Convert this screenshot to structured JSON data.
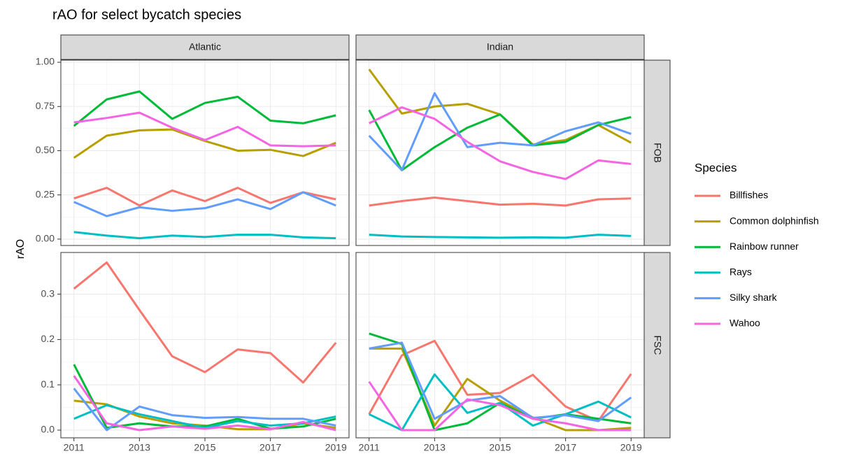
{
  "chart_data": {
    "type": "line",
    "title": "rAO for select bycatch species",
    "ylabel": "rAO",
    "legend": {
      "title": "Species"
    },
    "series": [
      {
        "name": "Billfishes",
        "color": "#F8766D"
      },
      {
        "name": "Common dolphinfish",
        "color": "#B79F00"
      },
      {
        "name": "Rainbow runner",
        "color": "#00BA38"
      },
      {
        "name": "Rays",
        "color": "#00BFC4"
      },
      {
        "name": "Silky shark",
        "color": "#619CFF"
      },
      {
        "name": "Wahoo",
        "color": "#F564E3"
      }
    ],
    "x": [
      2011,
      2012,
      2013,
      2014,
      2015,
      2016,
      2017,
      2018,
      2019
    ],
    "xlim": [
      2010.6,
      2019.4
    ],
    "xticks": [
      2011,
      2013,
      2015,
      2017,
      2019
    ],
    "columns": [
      "Atlantic",
      "Indian"
    ],
    "rows": [
      {
        "label": "FOB",
        "ylim": [
          -0.036,
          1.012
        ],
        "yticks": [
          {
            "value": 0,
            "label": "0.00"
          },
          {
            "value": 0.25,
            "label": "0.25"
          },
          {
            "value": 0.5,
            "label": "0.50"
          },
          {
            "value": 0.75,
            "label": "0.75"
          },
          {
            "value": 1,
            "label": "1.00"
          }
        ],
        "panels": [
          [
            [
              0.23,
              0.29,
              0.19,
              0.275,
              0.215,
              0.29,
              0.205,
              0.265,
              0.225
            ],
            [
              0.46,
              0.585,
              0.615,
              0.62,
              0.555,
              0.5,
              0.505,
              0.47,
              0.545
            ],
            [
              0.64,
              0.79,
              0.835,
              0.68,
              0.77,
              0.805,
              0.67,
              0.655,
              0.7
            ],
            [
              0.04,
              0.02,
              0.005,
              0.02,
              0.012,
              0.025,
              0.025,
              0.01,
              0.005
            ],
            [
              0.21,
              0.13,
              0.18,
              0.16,
              0.175,
              0.225,
              0.17,
              0.265,
              0.19
            ],
            [
              0.66,
              0.685,
              0.715,
              0.63,
              0.56,
              0.635,
              0.53,
              0.525,
              0.53
            ]
          ],
          [
            [
              0.19,
              0.215,
              0.235,
              0.215,
              0.195,
              0.2,
              0.19,
              0.225,
              0.23
            ],
            [
              0.96,
              0.71,
              0.75,
              0.765,
              0.705,
              0.535,
              0.56,
              0.645,
              0.545
            ],
            [
              0.73,
              0.39,
              0.52,
              0.63,
              0.705,
              0.53,
              0.55,
              0.645,
              0.69
            ],
            [
              0.025,
              0.015,
              0.012,
              0.01,
              0.008,
              0.01,
              0.008,
              0.025,
              0.018
            ],
            [
              0.585,
              0.39,
              0.825,
              0.52,
              0.545,
              0.53,
              0.61,
              0.66,
              0.595
            ],
            [
              0.655,
              0.745,
              0.68,
              0.55,
              0.44,
              0.38,
              0.34,
              0.445,
              0.425
            ]
          ]
        ]
      },
      {
        "label": "FSC",
        "ylim": [
          -0.017,
          0.392
        ],
        "yticks": [
          {
            "value": 0,
            "label": "0.0"
          },
          0.1,
          0.2,
          0.3
        ],
        "panels": [
          [
            [
              0.312,
              0.37,
              0.265,
              0.163,
              0.128,
              0.178,
              0.17,
              0.105,
              0.193
            ],
            [
              0.065,
              0.057,
              0.03,
              0.015,
              0.01,
              0.002,
              0.002,
              0.015,
              0.005
            ],
            [
              0.145,
              0.005,
              0.015,
              0.008,
              0.008,
              0.025,
              0.003,
              0.008,
              0.025
            ],
            [
              0.025,
              0.055,
              0.035,
              0.02,
              0.005,
              0.02,
              0.01,
              0.015,
              0.03
            ],
            [
              0.092,
              0,
              0.052,
              0.033,
              0.027,
              0.029,
              0.025,
              0.025,
              0.01
            ],
            [
              0.12,
              0.015,
              0,
              0.008,
              0.003,
              0.01,
              0.002,
              0.018,
              0
            ]
          ],
          [
            [
              0.035,
              0.165,
              0.197,
              0.078,
              0.082,
              0.122,
              0.052,
              0.02,
              0.124
            ],
            [
              0.18,
              0.18,
              0.01,
              0.113,
              0.065,
              0.028,
              0,
              0,
              0.005
            ],
            [
              0.213,
              0.19,
              0,
              0.015,
              0.06,
              0.025,
              0.035,
              0.025,
              0.015
            ],
            [
              0.035,
              0,
              0.123,
              0.038,
              0.06,
              0.01,
              0.035,
              0.063,
              0.028
            ],
            [
              0.18,
              0.193,
              0.025,
              0.065,
              0.075,
              0.027,
              0.033,
              0.02,
              0.072
            ],
            [
              0.107,
              0,
              0,
              0.068,
              0.055,
              0.025,
              0.015,
              0,
              0
            ]
          ]
        ]
      }
    ]
  }
}
